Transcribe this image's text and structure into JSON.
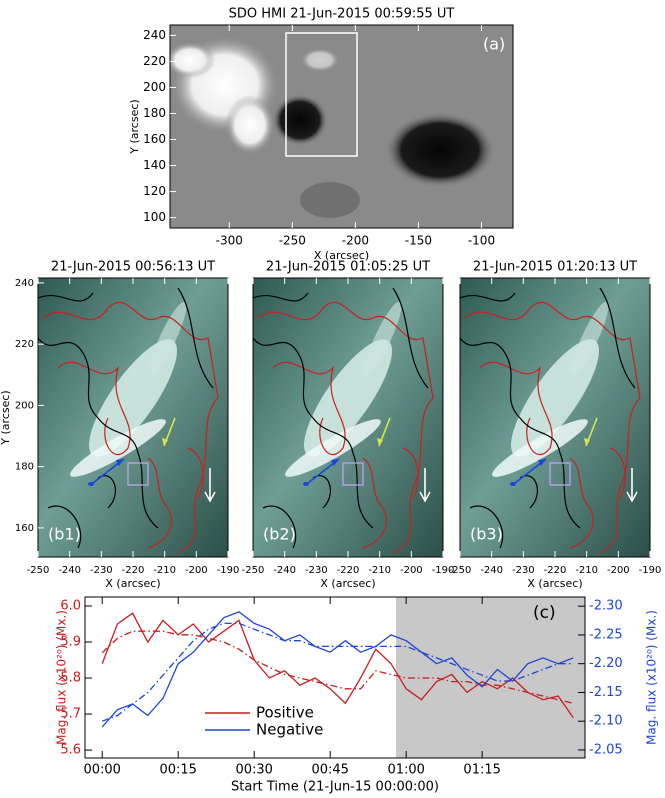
{
  "chart_data": [
    {
      "type": "image",
      "title": "SDO HMI 21-Jun-2015 00:59:55 UT",
      "label": "(a)",
      "xlabel": "X (arcsec)",
      "ylabel": "Y (arcsec)",
      "xlim": [
        -347,
        -75
      ],
      "xticks": [
        -300,
        -250,
        -200,
        -150,
        -100
      ],
      "ylim": [
        92,
        248
      ],
      "yticks": [
        100,
        120,
        140,
        160,
        180,
        200,
        220,
        240
      ]
    },
    {
      "type": "image",
      "title": "21-Jun-2015 00:56:13 UT",
      "label": "(b1)",
      "xlabel": "X (arcsec)",
      "ylabel": "Y (arcsec)",
      "xlim": [
        -250,
        -190
      ],
      "xticks": [
        -250,
        -240,
        -230,
        -220,
        -210,
        -200,
        -190
      ],
      "ylim": [
        150.5,
        241.6
      ],
      "yticks": [
        160,
        180,
        200,
        220,
        240
      ]
    },
    {
      "type": "image",
      "title": "21-Jun-2015 01:05:25 UT",
      "label": "(b2)",
      "xlabel": "X (arcsec)",
      "xlim": [
        -250,
        -190
      ],
      "xticks": [
        -250,
        -240,
        -230,
        -220,
        -210,
        -200,
        -190
      ]
    },
    {
      "type": "image",
      "title": "21-Jun-2015 01:20:13 UT",
      "label": "(b3)",
      "xlabel": "X (arcsec)",
      "xlim": [
        -250,
        -190
      ],
      "xticks": [
        -250,
        -240,
        -230,
        -220,
        -210,
        -200,
        -190
      ]
    },
    {
      "type": "line",
      "label": "(c)",
      "xlabel": "Start Time (21-Jun-15 00:00:00)",
      "ylabel": "Mag. flux (x10²⁰) (Mx.)",
      "y2label": "Mag. flux (x10²⁰) (Mx.)",
      "xlim": [
        -3.4,
        95.3
      ],
      "xticks": [
        {
          "value": 0,
          "label": "00:00"
        },
        {
          "value": 15,
          "label": "00:15"
        },
        {
          "value": 30,
          "label": "00:30"
        },
        {
          "value": 45,
          "label": "00:45"
        },
        {
          "value": 60,
          "label": "01:00"
        },
        {
          "value": 75,
          "label": "01:15"
        }
      ],
      "ylim": [
        5.578,
        6.025
      ],
      "yticks": [
        5.6,
        5.7,
        5.8,
        5.9,
        {
          "value": 6.0,
          "label": "6.0"
        }
      ],
      "y2lim": [
        -2.036,
        -2.316
      ],
      "y2ticks": [
        {
          "value": -2.05,
          "label": "-2.05"
        },
        {
          "value": -2.1,
          "label": "-2.10"
        },
        {
          "value": -2.15,
          "label": "-2.15"
        },
        {
          "value": -2.2,
          "label": "-2.20"
        },
        {
          "value": -2.25,
          "label": "-2.25"
        },
        {
          "value": -2.3,
          "label": "-2.30"
        }
      ],
      "highlight_x": [
        58,
        95.3
      ],
      "x": [
        0,
        3,
        6,
        9,
        12,
        15,
        18,
        21,
        24,
        27,
        30,
        33,
        36,
        39,
        42,
        45,
        48,
        51,
        54,
        57,
        60,
        63,
        66,
        69,
        72,
        75,
        78,
        81,
        84,
        87,
        90,
        93
      ],
      "series": [
        {
          "name": "Positive",
          "color": "#c81e1e",
          "axis": "y",
          "values": [
            5.84,
            5.95,
            5.98,
            5.9,
            5.96,
            5.92,
            5.95,
            5.9,
            5.93,
            5.96,
            5.85,
            5.8,
            5.82,
            5.78,
            5.8,
            5.77,
            5.73,
            5.8,
            5.88,
            5.84,
            5.77,
            5.74,
            5.79,
            5.81,
            5.76,
            5.79,
            5.77,
            5.8,
            5.76,
            5.74,
            5.75,
            5.69
          ],
          "trend": [
            5.87,
            5.91,
            5.93,
            5.93,
            5.93,
            5.92,
            5.92,
            5.91,
            5.9,
            5.88,
            5.85,
            5.83,
            5.81,
            5.8,
            5.79,
            5.78,
            5.77,
            5.77,
            5.82,
            5.81,
            5.8,
            5.8,
            5.8,
            5.79,
            5.79,
            5.78,
            5.78,
            5.77,
            5.76,
            5.75,
            5.74,
            5.73
          ]
        },
        {
          "name": "Negative",
          "color": "#1e46d2",
          "axis": "y2",
          "values": [
            -2.09,
            -2.12,
            -2.13,
            -2.11,
            -2.14,
            -2.2,
            -2.22,
            -2.25,
            -2.28,
            -2.29,
            -2.27,
            -2.26,
            -2.24,
            -2.25,
            -2.23,
            -2.22,
            -2.24,
            -2.22,
            -2.23,
            -2.25,
            -2.24,
            -2.22,
            -2.2,
            -2.21,
            -2.18,
            -2.16,
            -2.19,
            -2.17,
            -2.2,
            -2.21,
            -2.2,
            -2.21
          ],
          "trend": [
            -2.1,
            -2.11,
            -2.13,
            -2.15,
            -2.18,
            -2.21,
            -2.24,
            -2.26,
            -2.27,
            -2.27,
            -2.26,
            -2.25,
            -2.24,
            -2.24,
            -2.23,
            -2.23,
            -2.23,
            -2.23,
            -2.23,
            -2.23,
            -2.23,
            -2.22,
            -2.21,
            -2.2,
            -2.19,
            -2.18,
            -2.17,
            -2.17,
            -2.18,
            -2.19,
            -2.2,
            -2.2
          ]
        }
      ]
    }
  ]
}
